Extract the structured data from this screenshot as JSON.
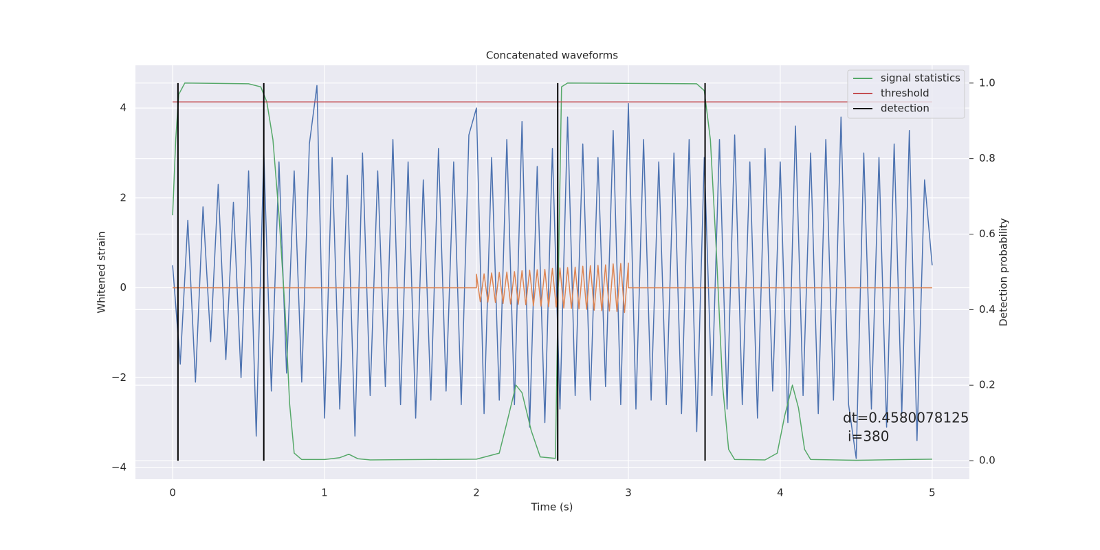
{
  "chart_data": {
    "type": "line",
    "title": "Concatenated waveforms",
    "xlabel": "Time (s)",
    "ylabel": "Whitened strain",
    "y2label": "Detection probability",
    "xlim": [
      -0.245,
      5.245
    ],
    "ylim": [
      -4.26,
      4.95
    ],
    "y2lim": [
      -0.049,
      1.047
    ],
    "xticks": [
      0,
      1,
      2,
      3,
      4,
      5
    ],
    "yticks": [
      {
        "value": -4,
        "label": "−4"
      },
      {
        "value": -2,
        "label": "−2"
      },
      0,
      2,
      4
    ],
    "y2ticks": [
      {
        "value": 0,
        "label": "0.0"
      },
      0.2,
      0.4,
      0.6,
      0.8,
      {
        "value": 1,
        "label": "1.0"
      }
    ],
    "grid": true,
    "legend": "upper right",
    "strain": {
      "color": "#4c72b0",
      "x": [
        0,
        0.05,
        0.1,
        0.15,
        0.2,
        0.25,
        0.3,
        0.35,
        0.4,
        0.45,
        0.5,
        0.55,
        0.6,
        0.65,
        0.7,
        0.75,
        0.8,
        0.85,
        0.9,
        0.95,
        1,
        1.05,
        1.1,
        1.15,
        1.2,
        1.25,
        1.3,
        1.35,
        1.4,
        1.45,
        1.5,
        1.55,
        1.6,
        1.65,
        1.7,
        1.75,
        1.8,
        1.85,
        1.9,
        1.95,
        2,
        2.05,
        2.1,
        2.15,
        2.2,
        2.25,
        2.3,
        2.35,
        2.4,
        2.45,
        2.5,
        2.55,
        2.6,
        2.65,
        2.7,
        2.75,
        2.8,
        2.85,
        2.9,
        2.95,
        3,
        3.05,
        3.1,
        3.15,
        3.2,
        3.25,
        3.3,
        3.35,
        3.4,
        3.45,
        3.5,
        3.55,
        3.6,
        3.65,
        3.7,
        3.75,
        3.8,
        3.85,
        3.9,
        3.95,
        4,
        4.05,
        4.1,
        4.15,
        4.2,
        4.25,
        4.3,
        4.35,
        4.4,
        4.45,
        4.5,
        4.55,
        4.6,
        4.65,
        4.7,
        4.75,
        4.8,
        4.85,
        4.9,
        4.95,
        5
      ],
      "values": [
        0.5,
        -1.7,
        1.5,
        -2.1,
        1.8,
        -1.2,
        2.3,
        -1.6,
        1.9,
        -2.0,
        2.6,
        -3.3,
        3.0,
        -2.3,
        2.8,
        -1.9,
        2.6,
        -2.1,
        3.2,
        4.5,
        -2.9,
        2.9,
        -2.7,
        2.5,
        -3.3,
        3.0,
        -2.4,
        2.6,
        -2.2,
        3.3,
        -2.6,
        2.8,
        -2.9,
        2.4,
        -2.5,
        3.1,
        -2.3,
        2.8,
        -2.6,
        3.4,
        4.0,
        -2.8,
        2.9,
        -2.5,
        3.3,
        -2.6,
        3.7,
        -3.1,
        2.7,
        -3.0,
        3.1,
        -2.7,
        3.8,
        -2.4,
        3.2,
        -2.5,
        2.9,
        -2.2,
        3.5,
        -2.6,
        4.1,
        -2.7,
        3.3,
        -2.5,
        2.8,
        -2.6,
        3.0,
        -2.8,
        3.3,
        -3.2,
        2.9,
        -2.4,
        3.3,
        -2.7,
        3.4,
        -2.6,
        2.8,
        -2.9,
        3.1,
        -2.3,
        2.8,
        -3.0,
        3.6,
        -2.4,
        3.0,
        -2.8,
        3.3,
        -2.5,
        3.8,
        -2.6,
        -3.8,
        3.0,
        -2.7,
        2.9,
        -3.1,
        3.2,
        -2.8,
        3.5,
        -3.4,
        2.4,
        0.5
      ]
    },
    "injection": {
      "color": "#dd8452",
      "x": [
        0,
        2,
        2,
        2.025,
        2.05,
        2.075,
        2.1,
        2.125,
        2.15,
        2.175,
        2.2,
        2.225,
        2.25,
        2.275,
        2.3,
        2.325,
        2.35,
        2.375,
        2.4,
        2.425,
        2.45,
        2.475,
        2.5,
        2.525,
        2.55,
        2.575,
        2.6,
        2.625,
        2.65,
        2.675,
        2.7,
        2.725,
        2.75,
        2.775,
        2.8,
        2.825,
        2.85,
        2.875,
        2.9,
        2.925,
        2.95,
        2.975,
        3,
        3,
        5
      ],
      "values": [
        0,
        0,
        0.3,
        -0.31,
        0.31,
        -0.32,
        0.33,
        -0.33,
        0.34,
        -0.35,
        0.35,
        -0.36,
        0.36,
        -0.37,
        0.38,
        -0.38,
        0.39,
        -0.4,
        0.4,
        -0.41,
        0.41,
        -0.42,
        0.43,
        -0.43,
        0.44,
        -0.45,
        0.45,
        -0.46,
        0.46,
        -0.47,
        0.48,
        -0.48,
        0.49,
        -0.5,
        0.5,
        -0.51,
        0.51,
        -0.52,
        0.53,
        -0.53,
        0.54,
        -0.55,
        0.55,
        0,
        0
      ]
    },
    "series": [
      {
        "name": "signal statistics",
        "color": "#55a868",
        "axis": "y2",
        "x": [
          0,
          0.02,
          0.04,
          0.08,
          0.5,
          0.58,
          0.62,
          0.66,
          0.7,
          0.74,
          0.77,
          0.8,
          0.85,
          1.0,
          1.1,
          1.16,
          1.22,
          1.3,
          2.0,
          2.15,
          2.2,
          2.26,
          2.3,
          2.36,
          2.42,
          2.52,
          2.54,
          2.56,
          2.6,
          3.45,
          3.5,
          3.54,
          3.58,
          3.62,
          3.66,
          3.7,
          3.9,
          3.98,
          4.03,
          4.08,
          4.12,
          4.16,
          4.2,
          4.5,
          5.0
        ],
        "values": [
          0.65,
          0.85,
          0.97,
          1.0,
          0.998,
          0.99,
          0.95,
          0.85,
          0.65,
          0.4,
          0.15,
          0.02,
          0.003,
          0.003,
          0.008,
          0.017,
          0.005,
          0.002,
          0.004,
          0.02,
          0.1,
          0.2,
          0.18,
          0.08,
          0.01,
          0.006,
          0.5,
          0.99,
          1.0,
          0.998,
          0.98,
          0.85,
          0.55,
          0.2,
          0.03,
          0.003,
          0.002,
          0.02,
          0.12,
          0.2,
          0.14,
          0.03,
          0.003,
          0.001,
          0.004
        ]
      },
      {
        "name": "threshold",
        "color": "#c44e52",
        "axis": "y2",
        "value": 0.95
      },
      {
        "name": "detection",
        "color": "#000000",
        "axis": "y2",
        "x": [
          0.035,
          0.6,
          2.535,
          3.505
        ]
      }
    ],
    "annotation": [
      "dt=0.4580078125",
      "i=380"
    ]
  }
}
